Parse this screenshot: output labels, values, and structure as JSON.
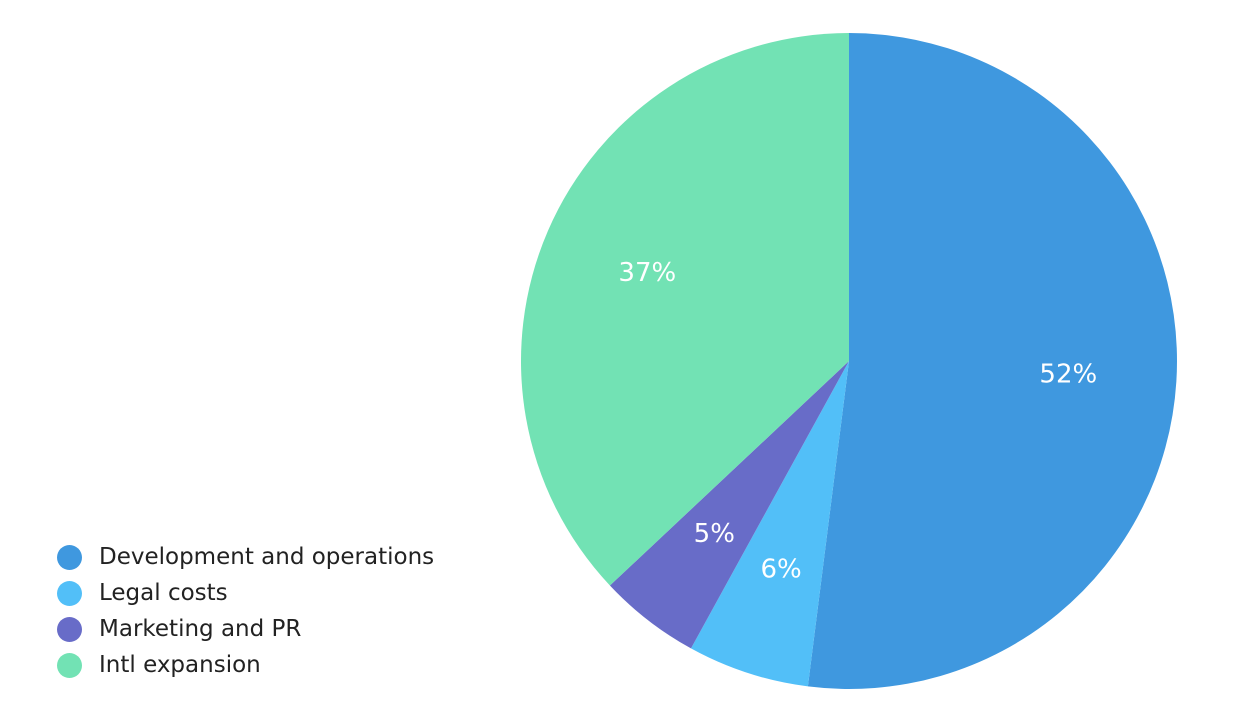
{
  "chart_data": {
    "type": "pie",
    "categories": [
      "Development and operations",
      "Legal costs",
      "Marketing and PR",
      "Intl expansion"
    ],
    "values": [
      52,
      6,
      5,
      37
    ],
    "value_labels": [
      "52%",
      "6%",
      "5%",
      "37%"
    ],
    "colors": [
      "#3f98df",
      "#52bff8",
      "#686cc8",
      "#72e2b4"
    ],
    "start_angle": "12 o'clock",
    "direction": "clockwise",
    "legend_position": "bottom-left"
  },
  "legend": {
    "items": [
      {
        "label": "Development and operations",
        "color": "#3f98df"
      },
      {
        "label": "Legal costs",
        "color": "#52bff8"
      },
      {
        "label": "Marketing and PR",
        "color": "#686cc8"
      },
      {
        "label": "Intl expansion",
        "color": "#72e2b4"
      }
    ]
  }
}
